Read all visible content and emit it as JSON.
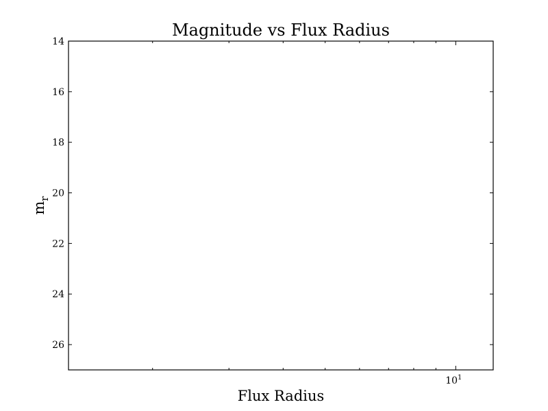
{
  "chart_data": {
    "type": "scatter",
    "title": "Magnitude vs Flux Radius",
    "xlabel": "Flux Radius",
    "ylabel_main": "m",
    "ylabel_sub": "r",
    "x_scale": "log",
    "xlim": [
      1.28,
      12.2
    ],
    "ylim": [
      27,
      14
    ],
    "y_inverted": true,
    "y_ticks": [
      14,
      16,
      18,
      20,
      22,
      24,
      26
    ],
    "y_tick_labels": [
      "14",
      "16",
      "18",
      "20",
      "22",
      "24",
      "26"
    ],
    "x_major_ticks": [
      10
    ],
    "x_tick_label_base": "10",
    "x_tick_label_exp": "1",
    "x_minor_ticks": [
      2,
      3,
      4,
      5,
      6,
      7,
      8,
      9
    ],
    "grid": false,
    "series": [
      {
        "x": [],
        "y": []
      }
    ]
  }
}
